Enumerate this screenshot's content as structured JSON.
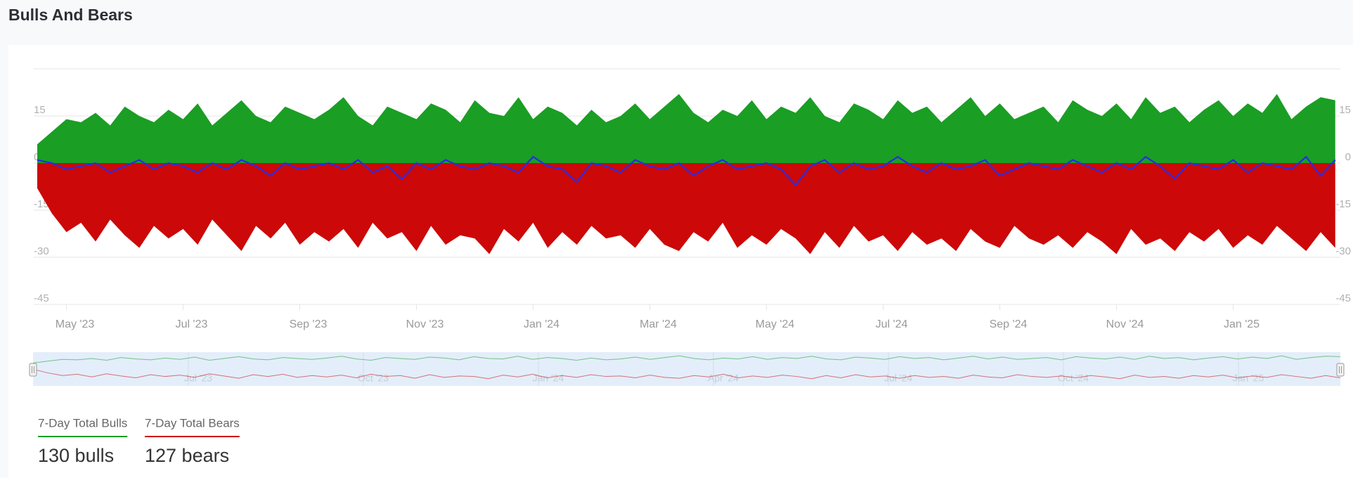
{
  "header": {
    "title": "Bulls And Bears"
  },
  "chart_data": {
    "type": "area",
    "categories": [
      null,
      null,
      "May '23",
      null,
      null,
      null,
      null,
      null,
      null,
      null,
      "Jul '23",
      null,
      null,
      null,
      null,
      null,
      null,
      null,
      "Sep '23",
      null,
      null,
      null,
      null,
      null,
      null,
      null,
      "Nov '23",
      null,
      null,
      null,
      null,
      null,
      null,
      null,
      "Jan '24",
      null,
      null,
      null,
      null,
      null,
      null,
      null,
      "Mar '24",
      null,
      null,
      null,
      null,
      null,
      null,
      null,
      "May '24",
      null,
      null,
      null,
      null,
      null,
      null,
      null,
      "Jul '24",
      null,
      null,
      null,
      null,
      null,
      null,
      null,
      "Sep '24",
      null,
      null,
      null,
      null,
      null,
      null,
      null,
      "Nov '24",
      null,
      null,
      null,
      null,
      null,
      null,
      null,
      "Jan '25",
      null,
      null,
      null,
      null,
      null,
      null,
      null
    ],
    "series": [
      {
        "name": "7-Day Total Bulls",
        "color": "#1a9e24",
        "values": [
          6,
          10,
          14,
          13,
          16,
          12,
          18,
          15,
          13,
          17,
          14,
          19,
          12,
          16,
          20,
          15,
          13,
          18,
          16,
          14,
          17,
          21,
          15,
          12,
          18,
          16,
          14,
          19,
          17,
          13,
          20,
          16,
          15,
          21,
          14,
          18,
          16,
          12,
          17,
          13,
          15,
          19,
          14,
          18,
          22,
          16,
          13,
          17,
          15,
          20,
          14,
          18,
          16,
          21,
          15,
          13,
          19,
          17,
          14,
          20,
          16,
          18,
          13,
          17,
          21,
          15,
          19,
          14,
          16,
          18,
          13,
          20,
          17,
          15,
          19,
          14,
          21,
          16,
          18,
          13,
          17,
          20,
          15,
          19,
          16,
          22,
          14,
          18,
          21,
          20
        ]
      },
      {
        "name": "7-Day Total Bears",
        "color": "#cc0808",
        "values": [
          -8,
          -16,
          -22,
          -19,
          -25,
          -18,
          -23,
          -27,
          -20,
          -24,
          -21,
          -26,
          -18,
          -23,
          -28,
          -20,
          -24,
          -19,
          -26,
          -22,
          -25,
          -21,
          -27,
          -19,
          -24,
          -22,
          -28,
          -20,
          -26,
          -23,
          -24,
          -29,
          -21,
          -25,
          -19,
          -27,
          -22,
          -26,
          -20,
          -24,
          -23,
          -27,
          -21,
          -26,
          -28,
          -22,
          -25,
          -19,
          -27,
          -23,
          -26,
          -21,
          -24,
          -29,
          -22,
          -27,
          -20,
          -25,
          -23,
          -28,
          -22,
          -26,
          -24,
          -28,
          -21,
          -25,
          -27,
          -20,
          -24,
          -26,
          -23,
          -27,
          -22,
          -25,
          -29,
          -21,
          -26,
          -24,
          -28,
          -22,
          -25,
          -21,
          -27,
          -23,
          -26,
          -20,
          -24,
          -28,
          -22,
          -27
        ]
      },
      {
        "color": "#2b2be6",
        "line": true,
        "values": [
          1,
          0,
          -2,
          -1,
          0,
          -3,
          -1,
          1,
          -2,
          0,
          -1,
          -3,
          0,
          -2,
          1,
          -1,
          -4,
          0,
          -2,
          -1,
          0,
          -2,
          1,
          -3,
          -1,
          -5,
          0,
          -2,
          1,
          -1,
          -2,
          0,
          -1,
          -3,
          2,
          -1,
          -2,
          -6,
          0,
          -1,
          -3,
          1,
          -1,
          -2,
          0,
          -4,
          -1,
          1,
          -2,
          -1,
          0,
          -2,
          -7,
          -1,
          1,
          -3,
          0,
          -2,
          -1,
          2,
          -1,
          -3,
          0,
          -2,
          -1,
          1,
          -4,
          -2,
          0,
          -1,
          -2,
          1,
          -1,
          -3,
          0,
          -2,
          2,
          -1,
          -5,
          0,
          -1,
          -2,
          1,
          -3,
          0,
          -1,
          -2,
          2,
          -4,
          1
        ]
      }
    ],
    "ylim": [
      -45,
      30
    ],
    "yticks": [
      -45,
      -30,
      -15,
      0,
      15
    ],
    "grid": true
  },
  "navigator": {
    "labels": [
      "Jul '23",
      "Oct '23",
      "Jan '24",
      "Apr '24",
      "Jul '24",
      "Oct '24",
      "Jan '25"
    ]
  },
  "summary": [
    "130 bulls",
    "127 bears"
  ]
}
